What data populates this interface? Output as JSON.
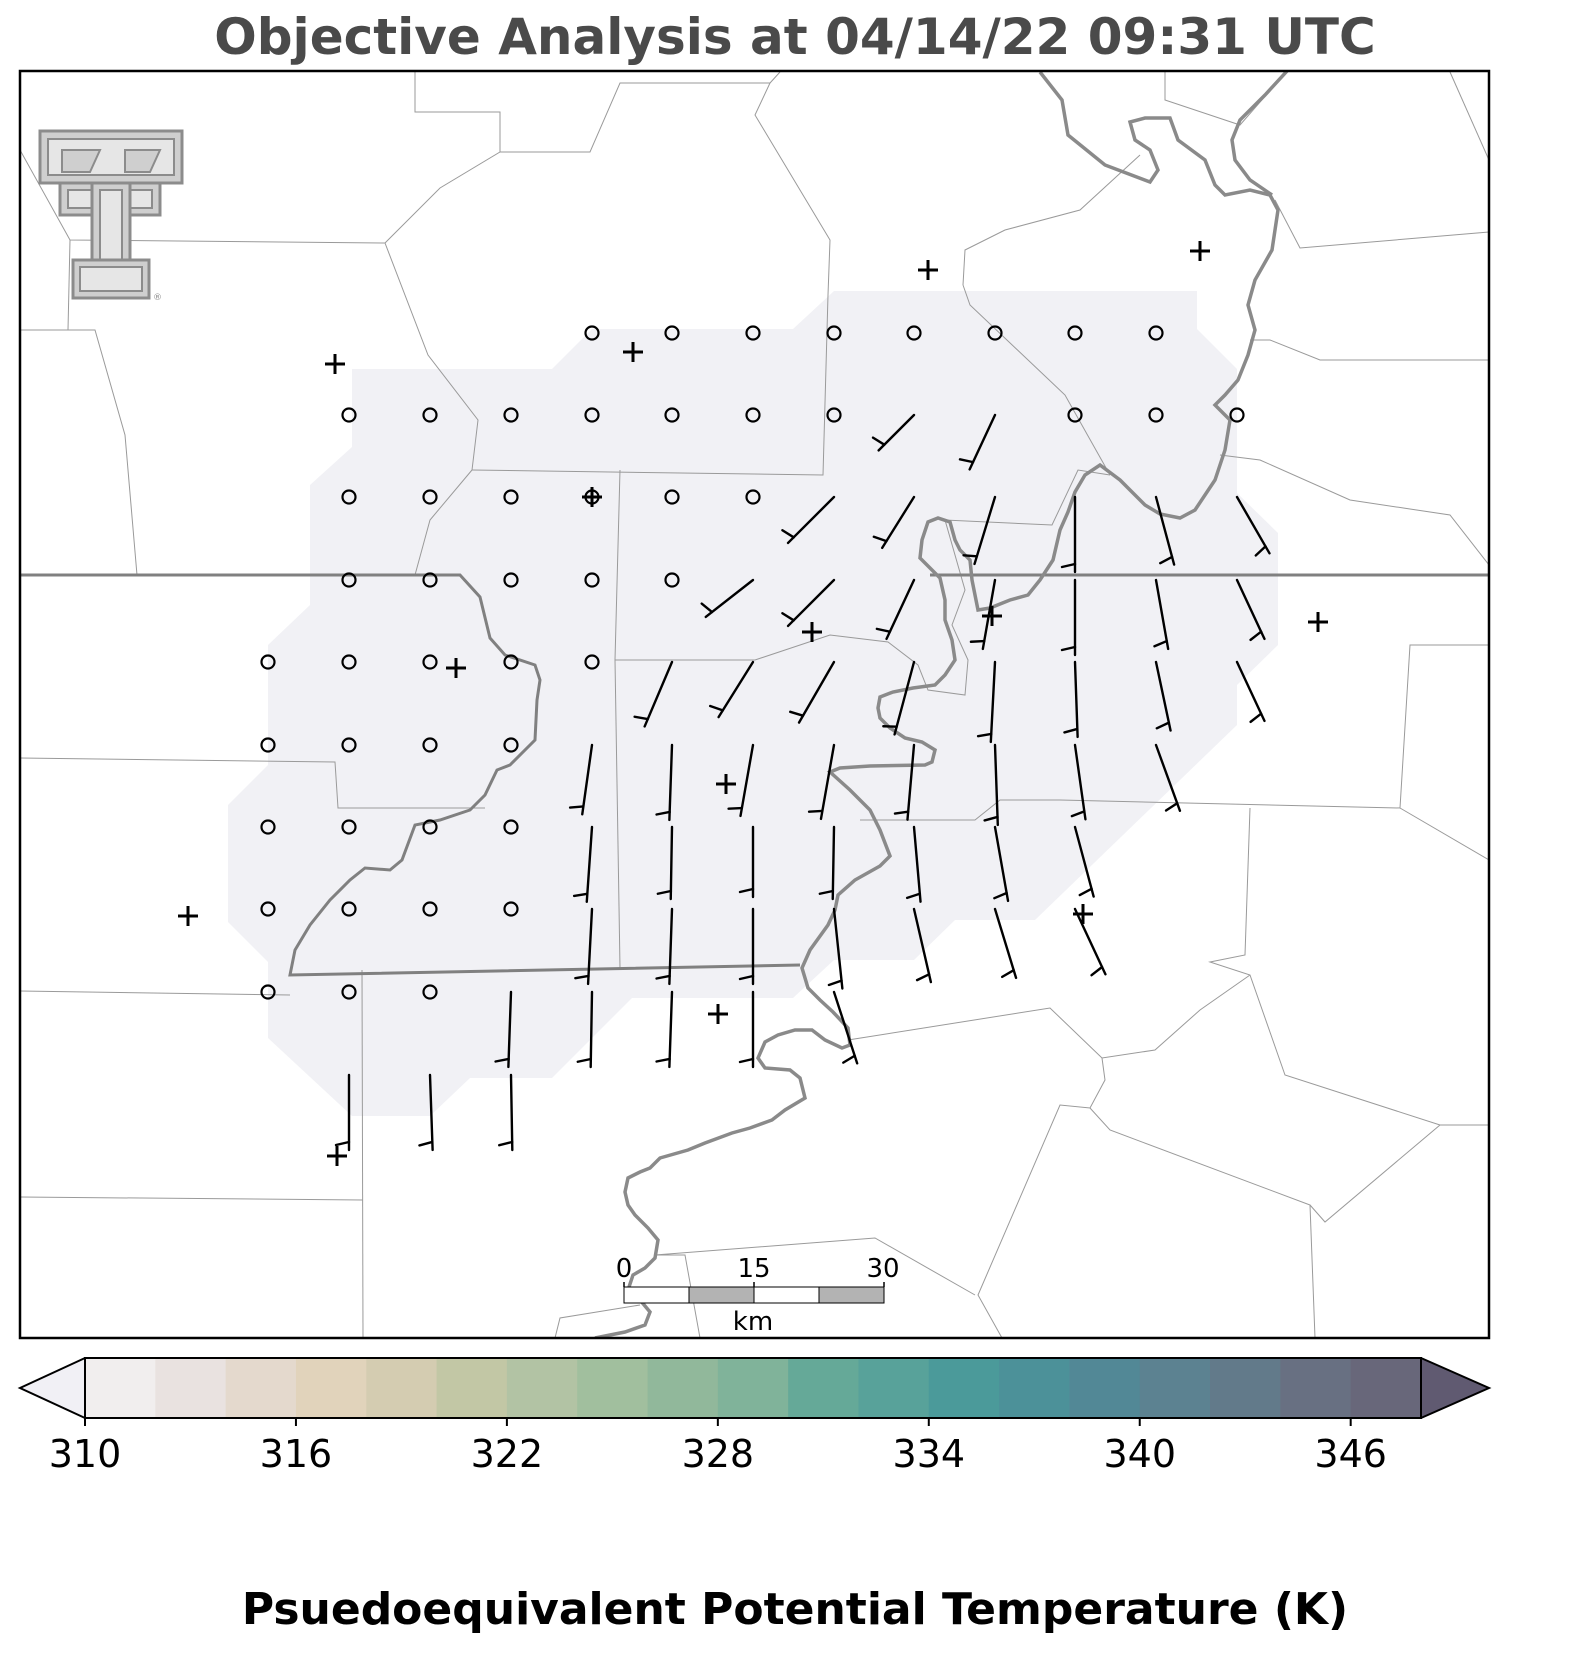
{
  "title": "Objective Analysis at 04/14/22 09:31 UTC",
  "colorbar": {
    "label": "Psuedoequivalent Potential Temperature (K)",
    "ticks": [
      "310",
      "316",
      "322",
      "328",
      "334",
      "340",
      "346"
    ],
    "colors": [
      "#f1f0f5",
      "#f1eeee",
      "#e9e2e0",
      "#e4d9cd",
      "#e1d3bb",
      "#d4ccb1",
      "#c2c7a5",
      "#b2c3a4",
      "#a1bf9e",
      "#91b89b",
      "#80b39a",
      "#65a998",
      "#58a29a",
      "#4b9a9a",
      "#4c9199",
      "#528896",
      "#5c8291",
      "#627a8a",
      "#687082",
      "#68677a",
      "#605a71"
    ],
    "min": 310,
    "max": 348,
    "extend": "both"
  },
  "scale_bar": {
    "labels": [
      "0",
      "15",
      "30"
    ],
    "unit": "km"
  },
  "logo": {
    "name": "Texas Tech Double T",
    "registered_mark": "®"
  },
  "colors": {
    "analysis_fill": "#f1f1f5",
    "county_line": "#9a9a9a",
    "state_line": "#808080",
    "river": "#8a8a8a",
    "station": "#000000",
    "frame": "#000000",
    "title": "#4a4a4a"
  },
  "stations": [
    [
      335,
      364
    ],
    [
      633,
      352
    ],
    [
      928,
      270
    ],
    [
      1200,
      251
    ],
    [
      592,
      497
    ],
    [
      456,
      668
    ],
    [
      812,
      632
    ],
    [
      992,
      616
    ],
    [
      1318,
      622
    ],
    [
      726,
      784
    ],
    [
      188,
      916
    ],
    [
      1083,
      914
    ],
    [
      718,
      1014
    ],
    [
      337,
      1156
    ]
  ],
  "calm_points": [
    [
      592,
      333
    ],
    [
      672,
      333
    ],
    [
      753,
      333
    ],
    [
      834,
      333
    ],
    [
      914,
      333
    ],
    [
      995,
      333
    ],
    [
      1075,
      333
    ],
    [
      1156,
      333
    ],
    [
      349,
      415
    ],
    [
      430,
      415
    ],
    [
      511,
      415
    ],
    [
      592,
      415
    ],
    [
      672,
      415
    ],
    [
      753,
      415
    ],
    [
      834,
      415
    ],
    [
      1075,
      415
    ],
    [
      1156,
      415
    ],
    [
      1237,
      415
    ],
    [
      349,
      497
    ],
    [
      430,
      497
    ],
    [
      511,
      497
    ],
    [
      592,
      497
    ],
    [
      672,
      497
    ],
    [
      753,
      497
    ],
    [
      349,
      580
    ],
    [
      430,
      580
    ],
    [
      511,
      580
    ],
    [
      592,
      580
    ],
    [
      672,
      580
    ],
    [
      268,
      662
    ],
    [
      349,
      662
    ],
    [
      430,
      662
    ],
    [
      511,
      662
    ],
    [
      592,
      662
    ],
    [
      268,
      745
    ],
    [
      349,
      745
    ],
    [
      430,
      745
    ],
    [
      511,
      745
    ],
    [
      268,
      827
    ],
    [
      349,
      827
    ],
    [
      430,
      827
    ],
    [
      511,
      827
    ],
    [
      268,
      909
    ],
    [
      349,
      909
    ],
    [
      430,
      909
    ],
    [
      511,
      909
    ],
    [
      268,
      992
    ],
    [
      349,
      992
    ],
    [
      430,
      992
    ]
  ],
  "wind_barbs": [
    [
      914,
      415,
      50,
      225
    ],
    [
      995,
      415,
      60,
      205
    ],
    [
      834,
      497,
      65,
      225
    ],
    [
      914,
      497,
      60,
      212
    ],
    [
      995,
      497,
      70,
      197
    ],
    [
      1075,
      497,
      75,
      180
    ],
    [
      1156,
      497,
      70,
      165
    ],
    [
      1237,
      497,
      65,
      150
    ],
    [
      753,
      580,
      60,
      232
    ],
    [
      834,
      580,
      65,
      225
    ],
    [
      914,
      580,
      65,
      205
    ],
    [
      995,
      580,
      70,
      190
    ],
    [
      1075,
      580,
      75,
      180
    ],
    [
      1156,
      580,
      70,
      170
    ],
    [
      1237,
      580,
      65,
      155
    ],
    [
      672,
      662,
      70,
      203
    ],
    [
      753,
      662,
      65,
      212
    ],
    [
      834,
      662,
      70,
      210
    ],
    [
      914,
      662,
      75,
      195
    ],
    [
      995,
      662,
      80,
      183
    ],
    [
      1075,
      662,
      75,
      178
    ],
    [
      1156,
      662,
      70,
      168
    ],
    [
      1237,
      662,
      65,
      155
    ],
    [
      592,
      745,
      70,
      188
    ],
    [
      672,
      745,
      75,
      182
    ],
    [
      753,
      745,
      72,
      190
    ],
    [
      834,
      745,
      75,
      190
    ],
    [
      914,
      745,
      75,
      185
    ],
    [
      995,
      745,
      80,
      178
    ],
    [
      1075,
      745,
      75,
      172
    ],
    [
      1156,
      745,
      70,
      160
    ],
    [
      592,
      827,
      75,
      184
    ],
    [
      672,
      827,
      72,
      181
    ],
    [
      753,
      827,
      70,
      180
    ],
    [
      834,
      827,
      72,
      181
    ],
    [
      914,
      827,
      75,
      175
    ],
    [
      995,
      827,
      75,
      170
    ],
    [
      1075,
      827,
      72,
      165
    ],
    [
      592,
      909,
      75,
      183
    ],
    [
      672,
      909,
      75,
      182
    ],
    [
      753,
      909,
      75,
      180
    ],
    [
      834,
      909,
      80,
      174
    ],
    [
      914,
      909,
      75,
      167
    ],
    [
      995,
      909,
      72,
      163
    ],
    [
      1075,
      909,
      72,
      155
    ],
    [
      511,
      992,
      75,
      182
    ],
    [
      592,
      992,
      75,
      181
    ],
    [
      672,
      992,
      75,
      182
    ],
    [
      753,
      992,
      75,
      180
    ],
    [
      834,
      992,
      75,
      162
    ],
    [
      349,
      1075,
      75,
      180
    ],
    [
      430,
      1075,
      75,
      178
    ],
    [
      511,
      1075,
      75,
      179
    ]
  ]
}
